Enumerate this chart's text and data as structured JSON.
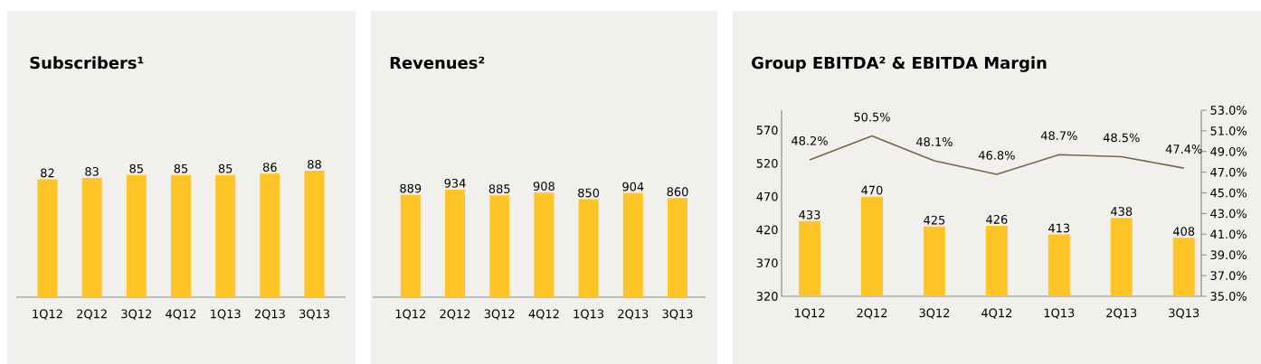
{
  "chart_data": [
    {
      "type": "bar",
      "title": "Subscribers¹",
      "categories": [
        "1Q12",
        "2Q12",
        "3Q12",
        "4Q12",
        "1Q13",
        "2Q13",
        "3Q13"
      ],
      "values": [
        82,
        83,
        85,
        85,
        85,
        86,
        88
      ],
      "color": "#ffc425",
      "data_labels": true,
      "tick_labels": "x"
    },
    {
      "type": "bar",
      "title": "Revenues²",
      "categories": [
        "1Q12",
        "2Q12",
        "3Q12",
        "4Q12",
        "1Q13",
        "2Q13",
        "3Q13"
      ],
      "values": [
        889,
        934,
        885,
        908,
        850,
        904,
        860
      ],
      "color": "#ffc425",
      "data_labels": true,
      "tick_labels": "x"
    },
    {
      "type": "bar",
      "title": "Group EBITDA² & EBITDA Margin",
      "categories": [
        "1Q12",
        "2Q12",
        "3Q12",
        "4Q12",
        "1Q13",
        "2Q13",
        "3Q13"
      ],
      "data_labels": true,
      "series": [
        {
          "type": "bar",
          "color": "#ffc425",
          "values": [
            433,
            470,
            425,
            426,
            413,
            438,
            408
          ]
        },
        {
          "type": "line",
          "axis": "y2",
          "color": "#7b6546",
          "values": [
            48.2,
            50.5,
            48.1,
            46.8,
            48.7,
            48.5,
            47.4
          ],
          "value_labels": [
            "48.2%",
            "50.5%",
            "48.1%",
            "46.8%",
            "48.7%",
            "48.5%",
            "47.4%"
          ]
        }
      ],
      "ylim": [
        320,
        600
      ],
      "yticks": [
        320,
        370,
        420,
        470,
        520,
        570
      ],
      "y2lim": [
        35,
        53
      ],
      "y2ticks": [
        {
          "value": 35,
          "label": "35.0%"
        },
        {
          "value": 37,
          "label": "37.0%"
        },
        {
          "value": 39,
          "label": "39.0%"
        },
        {
          "value": 41,
          "label": "41.0%"
        },
        {
          "value": 43,
          "label": "43.0%"
        },
        {
          "value": 45,
          "label": "45.0%"
        },
        {
          "value": 47,
          "label": "47.0%"
        },
        {
          "value": 49,
          "label": "49.0%"
        },
        {
          "value": 51,
          "label": "51.0%"
        },
        {
          "value": 53,
          "label": "53.0%"
        }
      ]
    }
  ]
}
